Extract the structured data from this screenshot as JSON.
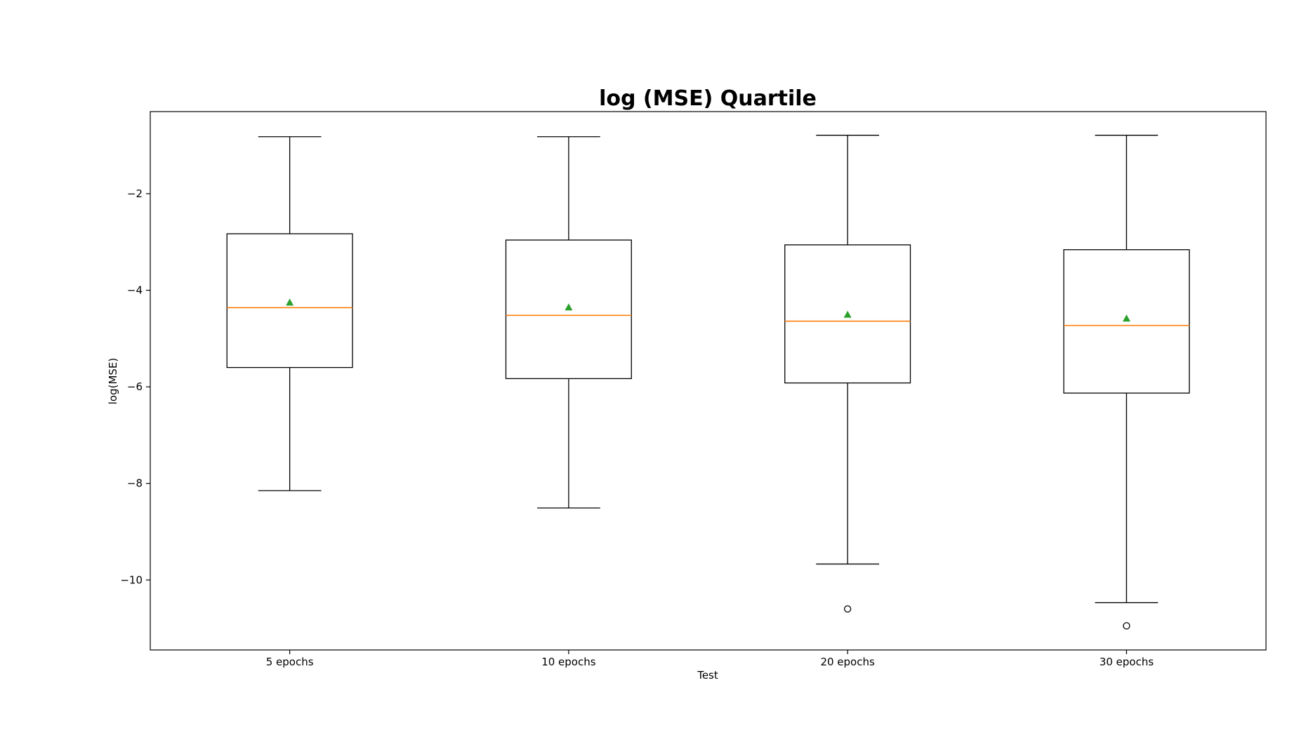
{
  "chart_data": {
    "type": "box",
    "title": "log (MSE) Quartile",
    "xlabel": "Test",
    "ylabel": "log(MSE)",
    "ylim": [
      -11.45,
      -0.3
    ],
    "yticks": [
      -2,
      -4,
      -6,
      -8,
      -10
    ],
    "ytick_labels": [
      "−2",
      "−4",
      "−6",
      "−8",
      "−10"
    ],
    "grid": false,
    "colors": {
      "box": "#000000",
      "median": "#ff7f0e",
      "mean_marker": "#2ca02c",
      "flier": "#000000"
    },
    "categories": [
      "5 epochs",
      "10 epochs",
      "20 epochs",
      "30 epochs"
    ],
    "boxes": [
      {
        "label": "5 epochs",
        "whisker_high": -0.82,
        "q3": -2.83,
        "median": -4.36,
        "q1": -5.6,
        "whisker_low": -8.15,
        "mean": -4.26,
        "outliers": []
      },
      {
        "label": "10 epochs",
        "whisker_high": -0.82,
        "q3": -2.96,
        "median": -4.52,
        "q1": -5.83,
        "whisker_low": -8.51,
        "mean": -4.36,
        "outliers": []
      },
      {
        "label": "20 epochs",
        "whisker_high": -0.79,
        "q3": -3.06,
        "median": -4.64,
        "q1": -5.92,
        "whisker_low": -9.67,
        "mean": -4.51,
        "outliers": [
          -10.6
        ]
      },
      {
        "label": "30 epochs",
        "whisker_high": -0.79,
        "q3": -3.16,
        "median": -4.73,
        "q1": -6.13,
        "whisker_low": -10.47,
        "mean": -4.59,
        "outliers": [
          -10.95
        ]
      }
    ]
  }
}
